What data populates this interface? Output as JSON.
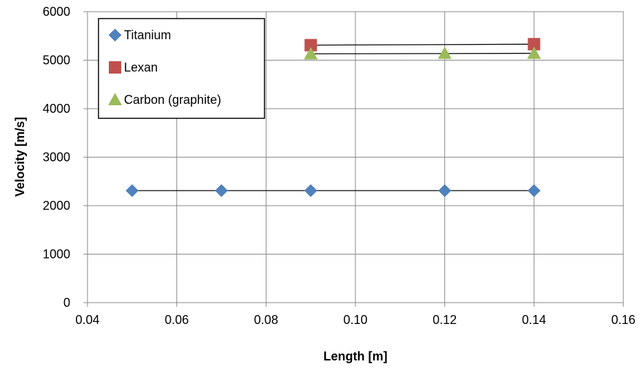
{
  "chart_data": {
    "type": "scatter",
    "xlabel": "Length [m]",
    "ylabel": "Velocity [m/s]",
    "xlim": [
      0.04,
      0.16
    ],
    "ylim": [
      0,
      6000
    ],
    "x_ticks": [
      0.04,
      0.06,
      0.08,
      0.1,
      0.12,
      0.14,
      0.16
    ],
    "x_tick_labels": [
      "0.04",
      "0.06",
      "0.08",
      "0.10",
      "0.12",
      "0.14",
      "0.16"
    ],
    "y_ticks": [
      0,
      1000,
      2000,
      3000,
      4000,
      5000,
      6000
    ],
    "y_tick_labels": [
      "0",
      "1000",
      "2000",
      "3000",
      "4000",
      "5000",
      "6000"
    ],
    "grid": true,
    "legend_position": "top-left",
    "series": [
      {
        "name": "Titanium",
        "marker": "diamond",
        "color": "#4F81BD",
        "x": [
          0.05,
          0.07,
          0.09,
          0.12,
          0.14
        ],
        "y": [
          2310,
          2310,
          2310,
          2310,
          2310
        ],
        "trendline": true
      },
      {
        "name": "Lexan",
        "marker": "square",
        "color": "#C0504D",
        "x": [
          0.09,
          0.14
        ],
        "y": [
          5310,
          5330
        ],
        "trendline": true
      },
      {
        "name": "Carbon (graphite)",
        "marker": "triangle",
        "color": "#9BBB59",
        "x": [
          0.09,
          0.12,
          0.14
        ],
        "y": [
          5130,
          5140,
          5140
        ],
        "trendline": true
      }
    ]
  }
}
